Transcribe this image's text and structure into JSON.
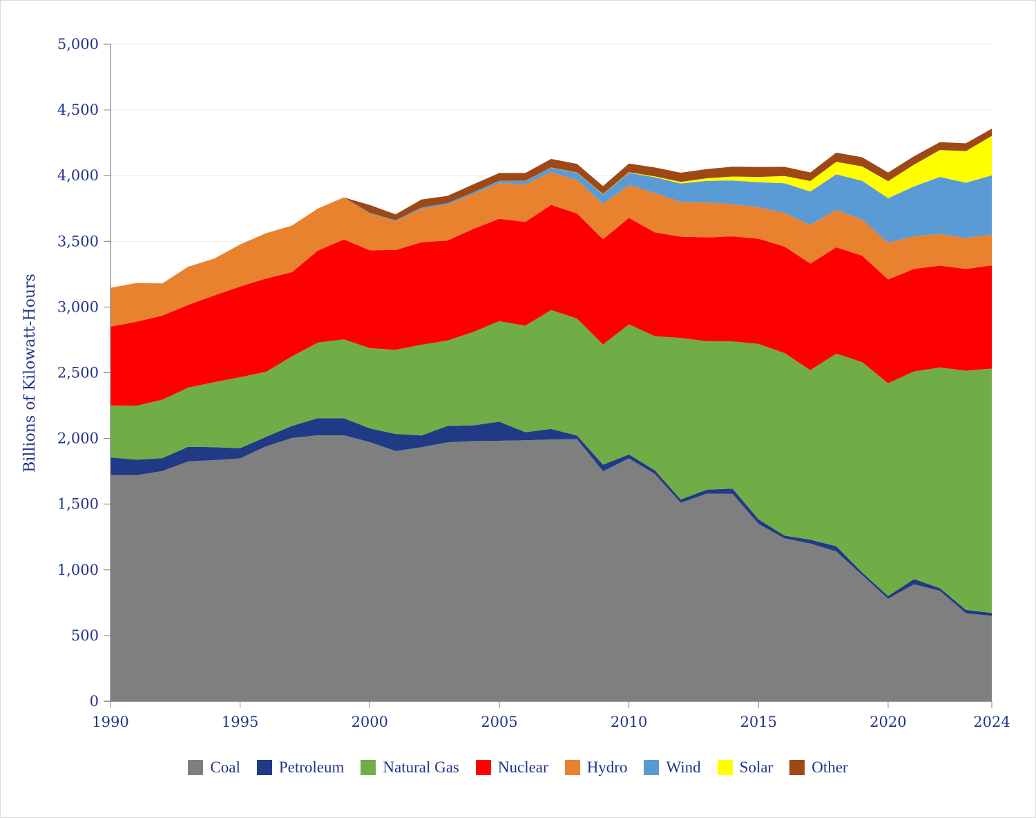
{
  "chart_data": {
    "type": "area",
    "stacked": true,
    "title": "",
    "xlabel": "",
    "ylabel": "Billions of Kilowatt-Hours",
    "xlim": [
      1990,
      2024
    ],
    "ylim": [
      0,
      5000
    ],
    "x_ticks": [
      "1990",
      "1995",
      "2000",
      "2005",
      "2010",
      "2015",
      "2020",
      "2024"
    ],
    "y_ticks": [
      "0",
      "500",
      "1,000",
      "1,500",
      "2,000",
      "2,500",
      "3,000",
      "3,500",
      "4,000",
      "4,500",
      "5,000"
    ],
    "grid": "horizontal",
    "legend_position": "bottom",
    "x": [
      1990,
      1991,
      1992,
      1993,
      1994,
      1995,
      1996,
      1997,
      1998,
      1999,
      2000,
      2001,
      2002,
      2003,
      2004,
      2005,
      2006,
      2007,
      2008,
      2009,
      2010,
      2011,
      2012,
      2013,
      2014,
      2015,
      2016,
      2017,
      2018,
      2019,
      2020,
      2021,
      2022,
      2023,
      2024
    ],
    "series": [
      {
        "name": "Coal",
        "color": "#7f7f7f",
        "values": [
          1722,
          1720,
          1752,
          1825,
          1835,
          1848,
          1940,
          2003,
          2024,
          2024,
          1972,
          1904,
          1933,
          1970,
          1980,
          1982,
          1986,
          1992,
          1995,
          1750,
          1848,
          1730,
          1510,
          1580,
          1578,
          1350,
          1240,
          1200,
          1140,
          960,
          780,
          890,
          840,
          670,
          650
        ]
      },
      {
        "name": "Petroleum",
        "color": "#213a86",
        "values": [
          134,
          118,
          98,
          112,
          98,
          78,
          72,
          92,
          130,
          130,
          105,
          130,
          90,
          125,
          120,
          145,
          62,
          80,
          27,
          50,
          30,
          28,
          25,
          30,
          40,
          35,
          20,
          30,
          40,
          20,
          20,
          40,
          20,
          25,
          22
        ]
      },
      {
        "name": "Natural Gas",
        "color": "#70ad47",
        "values": [
          395,
          410,
          445,
          450,
          495,
          540,
          495,
          530,
          575,
          600,
          610,
          640,
          690,
          650,
          710,
          765,
          810,
          905,
          890,
          915,
          990,
          1020,
          1230,
          1130,
          1120,
          1335,
          1390,
          1290,
          1465,
          1600,
          1620,
          1580,
          1680,
          1820,
          1860
        ]
      },
      {
        "name": "Nuclear",
        "color": "#ff0000",
        "values": [
          600,
          640,
          640,
          630,
          660,
          690,
          710,
          640,
          700,
          760,
          745,
          760,
          780,
          760,
          785,
          780,
          790,
          800,
          800,
          800,
          810,
          790,
          770,
          790,
          800,
          800,
          810,
          810,
          810,
          810,
          790,
          780,
          775,
          775,
          785
        ]
      },
      {
        "name": "Hydro",
        "color": "#e8822e",
        "values": [
          295,
          295,
          245,
          290,
          280,
          320,
          345,
          355,
          320,
          320,
          280,
          220,
          255,
          275,
          265,
          270,
          285,
          250,
          255,
          270,
          250,
          300,
          265,
          265,
          245,
          240,
          255,
          295,
          285,
          275,
          280,
          250,
          240,
          235,
          235
        ]
      },
      {
        "name": "Wind",
        "color": "#5b9bd5",
        "values": [
          0,
          0,
          0,
          0,
          0,
          0,
          0,
          0,
          0,
          0,
          5,
          6,
          10,
          11,
          14,
          17,
          26,
          34,
          55,
          73,
          94,
          120,
          140,
          165,
          180,
          190,
          227,
          254,
          270,
          295,
          338,
          378,
          435,
          421,
          450
        ]
      },
      {
        "name": "Solar",
        "color": "#ffff00",
        "values": [
          0,
          0,
          0,
          0,
          0,
          0,
          0,
          0,
          0,
          0,
          0,
          0,
          0,
          0,
          0,
          1,
          1,
          1,
          2,
          2,
          4,
          6,
          12,
          20,
          30,
          40,
          55,
          80,
          95,
          110,
          130,
          165,
          205,
          240,
          300
        ]
      },
      {
        "name": "Other",
        "color": "#9e4816",
        "values": [
          0,
          0,
          0,
          0,
          0,
          0,
          0,
          0,
          0,
          0,
          60,
          45,
          60,
          55,
          60,
          60,
          60,
          65,
          65,
          60,
          66,
          68,
          70,
          70,
          75,
          75,
          70,
          65,
          70,
          70,
          65,
          65,
          60,
          60,
          55
        ]
      }
    ]
  },
  "legend": [
    {
      "label": "Coal",
      "color": "#7f7f7f"
    },
    {
      "label": "Petroleum",
      "color": "#213a86"
    },
    {
      "label": "Natural Gas",
      "color": "#70ad47"
    },
    {
      "label": "Nuclear",
      "color": "#ff0000"
    },
    {
      "label": "Hydro",
      "color": "#e8822e"
    },
    {
      "label": "Wind",
      "color": "#5b9bd5"
    },
    {
      "label": "Solar",
      "color": "#ffff00"
    },
    {
      "label": "Other",
      "color": "#9e4816"
    }
  ]
}
